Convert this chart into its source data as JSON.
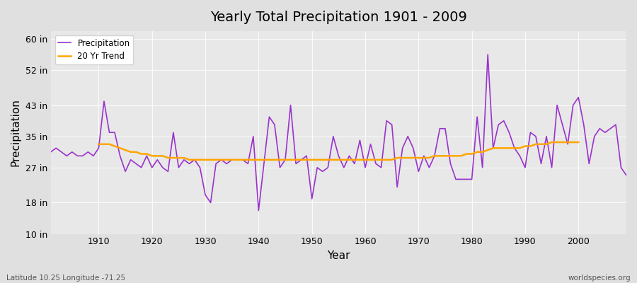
{
  "title": "Yearly Total Precipitation 1901 - 2009",
  "xlabel": "Year",
  "ylabel": "Precipitation",
  "bg_color": "#e0e0e0",
  "plot_bg_color": "#e8e8e8",
  "precip_color": "#9933CC",
  "trend_color": "#FFA500",
  "precip_label": "Precipitation",
  "trend_label": "20 Yr Trend",
  "ylim": [
    10,
    62
  ],
  "yticks": [
    10,
    18,
    27,
    35,
    43,
    52,
    60
  ],
  "ytick_labels": [
    "10 in",
    "18 in",
    "27 in",
    "35 in",
    "43 in",
    "52 in",
    "60 in"
  ],
  "years": [
    1901,
    1902,
    1903,
    1904,
    1905,
    1906,
    1907,
    1908,
    1909,
    1910,
    1911,
    1912,
    1913,
    1914,
    1915,
    1916,
    1917,
    1918,
    1919,
    1920,
    1921,
    1922,
    1923,
    1924,
    1925,
    1926,
    1927,
    1928,
    1929,
    1930,
    1931,
    1932,
    1933,
    1934,
    1935,
    1936,
    1937,
    1938,
    1939,
    1940,
    1941,
    1942,
    1943,
    1944,
    1945,
    1946,
    1947,
    1948,
    1949,
    1950,
    1951,
    1952,
    1953,
    1954,
    1955,
    1956,
    1957,
    1958,
    1959,
    1960,
    1961,
    1962,
    1963,
    1964,
    1965,
    1966,
    1967,
    1968,
    1969,
    1970,
    1971,
    1972,
    1973,
    1974,
    1975,
    1976,
    1977,
    1978,
    1979,
    1980,
    1981,
    1982,
    1983,
    1984,
    1985,
    1986,
    1987,
    1988,
    1989,
    1990,
    1991,
    1992,
    1993,
    1994,
    1995,
    1996,
    1997,
    1998,
    1999,
    2000,
    2001,
    2002,
    2003,
    2004,
    2005,
    2006,
    2007,
    2008,
    2009
  ],
  "precip": [
    31,
    32,
    31,
    30,
    31,
    30,
    30,
    31,
    30,
    32,
    44,
    36,
    36,
    30,
    26,
    29,
    28,
    27,
    30,
    27,
    29,
    27,
    26,
    36,
    27,
    29,
    28,
    29,
    27,
    20,
    18,
    28,
    29,
    28,
    29,
    29,
    29,
    28,
    35,
    16,
    28,
    40,
    38,
    27,
    29,
    43,
    28,
    29,
    30,
    19,
    27,
    26,
    27,
    35,
    30,
    27,
    30,
    28,
    34,
    27,
    33,
    28,
    27,
    39,
    38,
    22,
    32,
    35,
    32,
    26,
    30,
    27,
    30,
    37,
    37,
    28,
    24,
    24,
    24,
    24,
    40,
    27,
    56,
    32,
    38,
    39,
    36,
    32,
    30,
    27,
    36,
    35,
    28,
    35,
    27,
    43,
    38,
    33,
    43,
    45,
    38,
    28,
    35,
    37,
    36,
    37,
    38,
    27,
    25
  ],
  "trend_years": [
    1910,
    1911,
    1912,
    1913,
    1914,
    1915,
    1916,
    1917,
    1918,
    1919,
    1920,
    1921,
    1922,
    1923,
    1924,
    1925,
    1926,
    1927,
    1928,
    1929,
    1930,
    1931,
    1932,
    1933,
    1934,
    1935,
    1936,
    1937,
    1938,
    1939,
    1940,
    1941,
    1942,
    1943,
    1944,
    1945,
    1946,
    1947,
    1948,
    1949,
    1950,
    1951,
    1952,
    1953,
    1954,
    1955,
    1956,
    1957,
    1958,
    1959,
    1960,
    1961,
    1962,
    1963,
    1964,
    1965,
    1966,
    1967,
    1968,
    1969,
    1970,
    1971,
    1972,
    1973,
    1974,
    1975,
    1976,
    1977,
    1978,
    1979,
    1980,
    1981,
    1982,
    1983,
    1984,
    1985,
    1986,
    1987,
    1988,
    1989,
    1990,
    1991,
    1992,
    1993,
    1994,
    1995,
    1996,
    1997,
    1998,
    1999,
    2000
  ],
  "trend": [
    33.0,
    33.0,
    33.0,
    32.5,
    32.0,
    31.5,
    31.0,
    31.0,
    30.5,
    30.5,
    30.0,
    30.0,
    30.0,
    29.5,
    29.5,
    29.5,
    29.5,
    29.0,
    29.0,
    29.0,
    29.0,
    29.0,
    29.0,
    29.0,
    29.0,
    29.0,
    29.0,
    29.0,
    29.0,
    29.0,
    29.0,
    29.0,
    29.0,
    29.0,
    29.0,
    29.0,
    29.0,
    29.0,
    29.0,
    29.0,
    29.0,
    29.0,
    29.0,
    29.0,
    29.0,
    29.0,
    29.0,
    29.0,
    29.0,
    29.0,
    29.0,
    29.0,
    29.0,
    29.0,
    29.0,
    29.0,
    29.5,
    29.5,
    29.5,
    29.5,
    29.5,
    29.5,
    29.5,
    30.0,
    30.0,
    30.0,
    30.0,
    30.0,
    30.0,
    30.5,
    30.5,
    31.0,
    31.0,
    31.5,
    32.0,
    32.0,
    32.0,
    32.0,
    32.0,
    32.0,
    32.5,
    32.5,
    33.0,
    33.0,
    33.0,
    33.5,
    33.5,
    33.5,
    33.5,
    33.5,
    33.5
  ],
  "footnote_left": "Latitude 10.25 Longitude -71.25",
  "footnote_right": "worldspecies.org"
}
